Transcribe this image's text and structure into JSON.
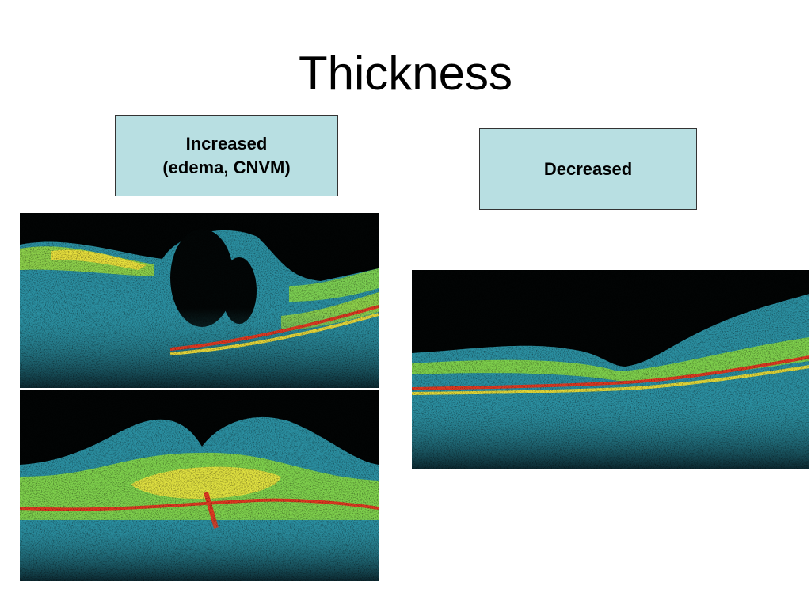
{
  "title": "Thickness",
  "boxes": [
    {
      "lines": [
        "Increased",
        "(edema, CNVM)"
      ]
    },
    {
      "lines": [
        "Decreased"
      ]
    }
  ]
}
